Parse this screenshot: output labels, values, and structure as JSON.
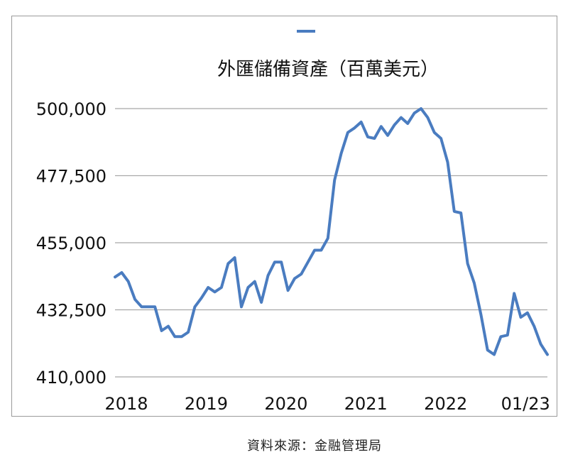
{
  "chart_data": {
    "type": "line",
    "title": "外匯儲備資產（百萬美元）",
    "xlabel": "",
    "ylabel": "",
    "ylim": [
      410000,
      500000
    ],
    "yticks": [
      {
        "value": 500000,
        "label": "500,000"
      },
      {
        "value": 477500,
        "label": "477,500"
      },
      {
        "value": 455000,
        "label": "455,000"
      },
      {
        "value": 432500,
        "label": "432,500"
      },
      {
        "value": 410000,
        "label": "410,000"
      }
    ],
    "xticks": [
      "2018",
      "2019",
      "2020",
      "2021",
      "2022",
      "01/23"
    ],
    "grid": true,
    "legend": "top",
    "color": "#4a7cc0",
    "x": [
      "2018-01",
      "2018-02",
      "2018-03",
      "2018-04",
      "2018-05",
      "2018-06",
      "2018-07",
      "2018-08",
      "2018-09",
      "2018-10",
      "2018-11",
      "2018-12",
      "2019-01",
      "2019-02",
      "2019-03",
      "2019-04",
      "2019-05",
      "2019-06",
      "2019-07",
      "2019-08",
      "2019-09",
      "2019-10",
      "2019-11",
      "2019-12",
      "2020-01",
      "2020-02",
      "2020-03",
      "2020-04",
      "2020-05",
      "2020-06",
      "2020-07",
      "2020-08",
      "2020-09",
      "2020-10",
      "2020-11",
      "2020-12",
      "2021-01",
      "2021-02",
      "2021-03",
      "2021-04",
      "2021-05",
      "2021-06",
      "2021-07",
      "2021-08",
      "2021-09",
      "2021-10",
      "2021-11",
      "2021-12",
      "2022-01",
      "2022-02",
      "2022-03",
      "2022-04",
      "2022-05",
      "2022-06",
      "2022-07",
      "2022-08",
      "2022-09",
      "2022-10",
      "2022-11",
      "2022-12",
      "2023-01",
      "2023-02",
      "2023-03",
      "2023-04",
      "2023-05",
      "2023-06"
    ],
    "values": [
      443500,
      445000,
      442000,
      436000,
      433500,
      433500,
      433500,
      425500,
      427000,
      423500,
      423500,
      425000,
      433500,
      436500,
      440000,
      438500,
      440000,
      448000,
      450000,
      433500,
      440000,
      442000,
      435000,
      444000,
      448500,
      448500,
      439000,
      443000,
      444500,
      448500,
      452500,
      452500,
      456500,
      476000,
      485000,
      492000,
      493500,
      495500,
      490500,
      490000,
      494000,
      491000,
      494500,
      497000,
      495000,
      498500,
      500000,
      497000,
      492000,
      490000,
      482000,
      465500,
      465000,
      448000,
      441500,
      431000,
      419000,
      417500,
      423500,
      424000,
      438000,
      430000,
      431500,
      427000,
      421000,
      417500
    ]
  },
  "source_note": "資料來源：金融管理局"
}
